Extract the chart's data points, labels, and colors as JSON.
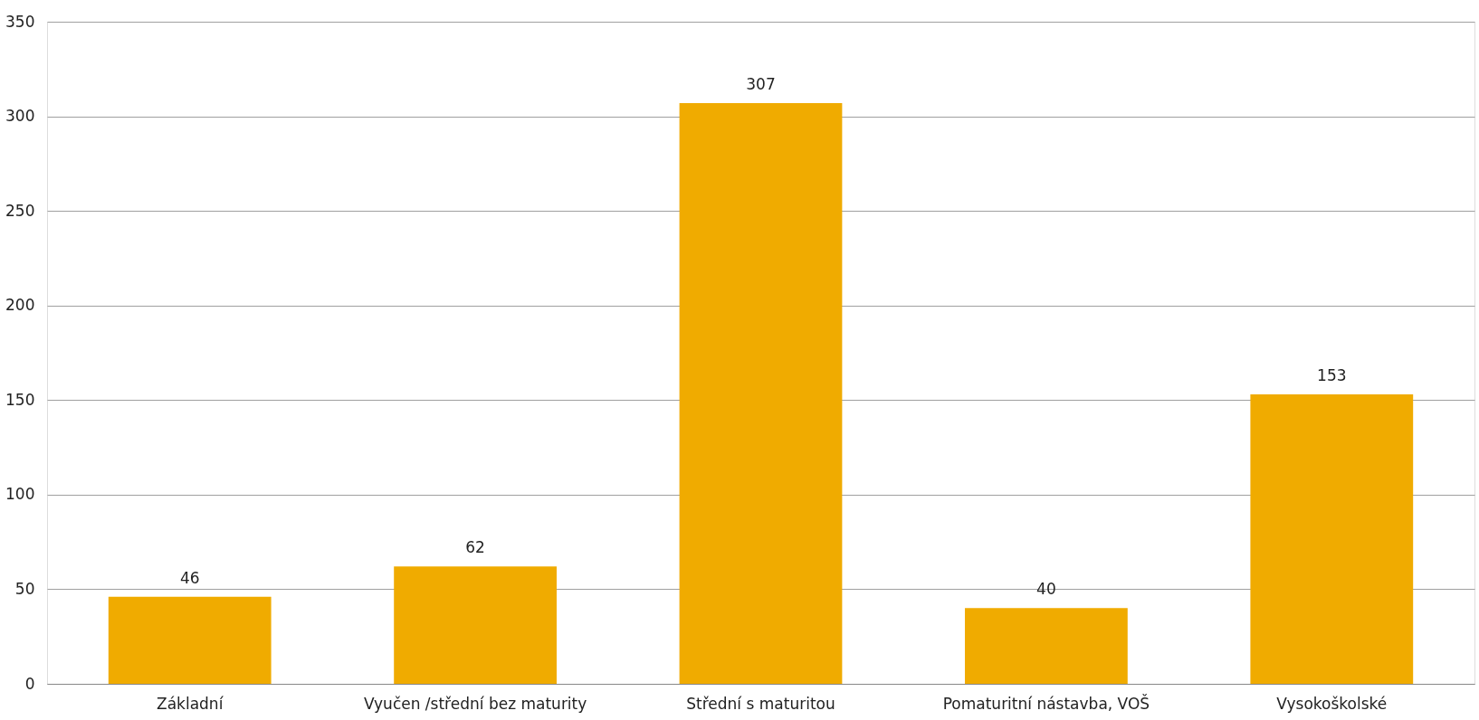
{
  "chart_data": {
    "type": "bar",
    "categories": [
      "Základní",
      "Vyučen /střední bez maturity",
      "Střední s maturitou",
      "Pomaturitní nástavba, VOŠ",
      "Vysokoškolské"
    ],
    "values": [
      46,
      62,
      307,
      40,
      153
    ],
    "color": "#f0ab00",
    "ylim": [
      0,
      350
    ],
    "yticks": [
      0,
      50,
      100,
      150,
      200,
      250,
      300,
      350
    ],
    "grid": "y",
    "data_labels": true
  }
}
